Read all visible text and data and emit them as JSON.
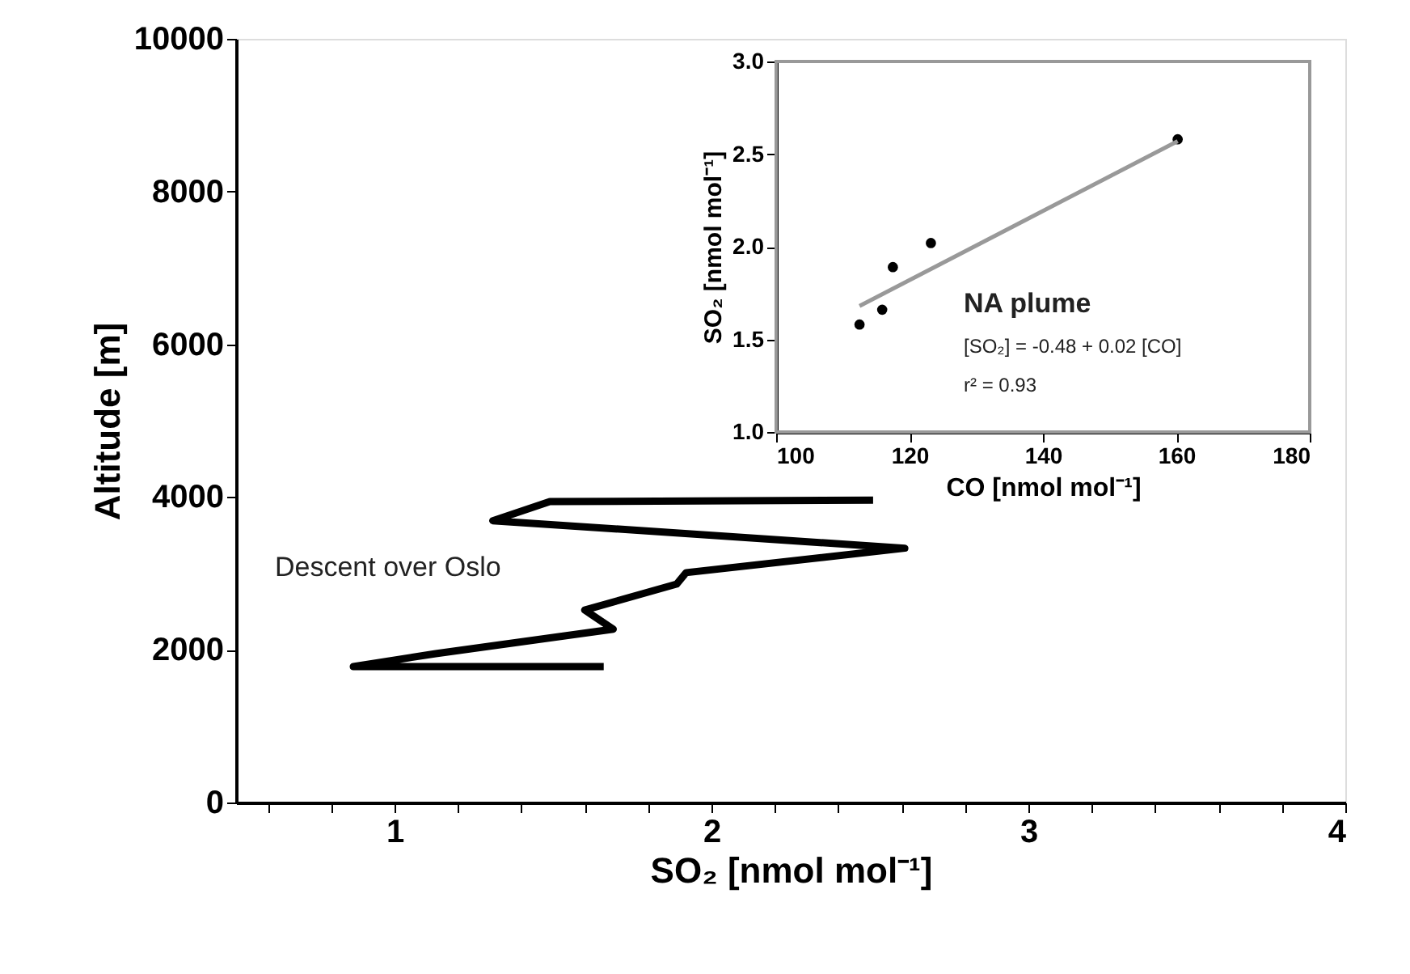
{
  "chart_data": [
    {
      "type": "line",
      "xlabel": "SO₂ [nmol mol⁻¹]",
      "ylabel": "Altitude [m]",
      "xlim": [
        0.5,
        4
      ],
      "xticks": [
        {
          "value": 0.6,
          "label": null
        },
        {
          "value": 0.8,
          "label": null
        },
        1,
        {
          "value": 1.2,
          "label": null
        },
        {
          "value": 1.4,
          "label": null
        },
        {
          "value": 1.6,
          "label": null
        },
        {
          "value": 1.8,
          "label": null
        },
        2,
        {
          "value": 2.2,
          "label": null
        },
        {
          "value": 2.4,
          "label": null
        },
        {
          "value": 2.6,
          "label": null
        },
        {
          "value": 2.8,
          "label": null
        },
        3,
        {
          "value": 3.2,
          "label": null
        },
        {
          "value": 3.4,
          "label": null
        },
        {
          "value": 3.6,
          "label": null
        },
        {
          "value": 3.8,
          "label": null
        },
        4
      ],
      "ylim": [
        0,
        10000
      ],
      "yticks": [
        0,
        2000,
        4000,
        6000,
        8000,
        10000
      ],
      "series": [
        {
          "color": "#000000",
          "x": [
            2.51,
            1.49,
            1.31,
            2.61,
            1.92,
            1.89,
            1.6,
            1.69,
            1.13,
            0.87,
            1.66
          ],
          "values": [
            3960,
            3940,
            3690,
            3330,
            3010,
            2860,
            2520,
            2270,
            1950,
            1780,
            1780
          ]
        }
      ],
      "line_style": "solid",
      "annotations": [
        "Descent over Oslo"
      ]
    },
    {
      "type": "scatter",
      "xlabel": "CO [nmol mol⁻¹]",
      "ylabel": "SO₂ [nmol mol⁻¹]",
      "xlim": [
        100,
        180
      ],
      "xticks": [
        100,
        120,
        140,
        160,
        180
      ],
      "ylim": [
        1,
        3
      ],
      "yticks": [
        {
          "value": 1,
          "label": "1.0"
        },
        {
          "value": 1.5,
          "label": "1.5"
        },
        {
          "value": 2,
          "label": "2.0"
        },
        {
          "value": 2.5,
          "label": "2.5"
        },
        {
          "value": 3,
          "label": "3.0"
        }
      ],
      "series": [
        {
          "type": "scatter",
          "color": "#000000",
          "marker": "circle",
          "x": [
            112.5,
            115.9,
            117.5,
            123.2,
            160.2
          ],
          "values": [
            1.58,
            1.66,
            1.89,
            2.02,
            2.58
          ]
        },
        {
          "type": "line",
          "color": "#999999",
          "x": [
            112.5,
            160.2
          ],
          "values": [
            1.68,
            2.57
          ]
        }
      ],
      "annotations": [
        "NA plume",
        "[SO₂] = -0.48 + 0.02 [CO]",
        "r² = 0.93"
      ]
    }
  ]
}
